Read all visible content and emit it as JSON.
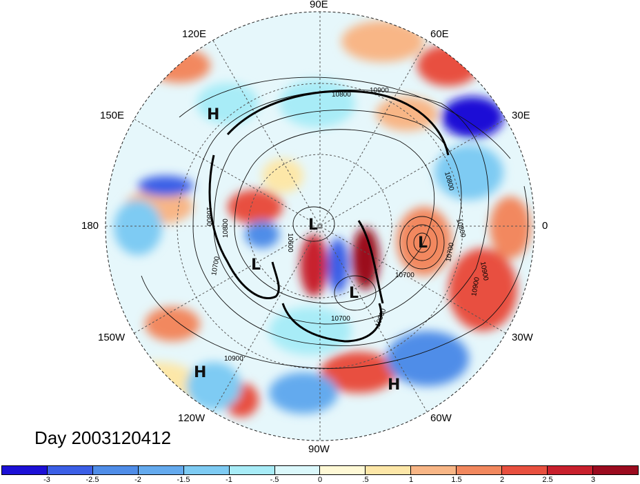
{
  "longitude_labels": {
    "lon_90e": "90E",
    "lon_60e": "60E",
    "lon_30e": "30E",
    "lon_0": "0",
    "lon_30w": "30W",
    "lon_60w": "60W",
    "lon_90w": "90W",
    "lon_120w": "120W",
    "lon_150w": "150W",
    "lon_180": "180",
    "lon_150e": "150E",
    "lon_120e": "120E"
  },
  "pressure_systems": [
    {
      "kind": "high",
      "symbol": "H",
      "region": "North Pacific / Siberia"
    },
    {
      "kind": "low",
      "symbol": "L",
      "region": "Pole"
    },
    {
      "kind": "low",
      "symbol": "L",
      "region": "Europe"
    },
    {
      "kind": "low",
      "symbol": "L",
      "region": "Alaska"
    },
    {
      "kind": "low",
      "symbol": "L",
      "region": "Hudson Bay"
    },
    {
      "kind": "high",
      "symbol": "H",
      "region": "Subtropical Pacific"
    },
    {
      "kind": "high",
      "symbol": "H",
      "region": "Subtropical Atlantic"
    }
  ],
  "contour_labels": [
    "10800",
    "10900",
    "10800",
    "10800",
    "10700",
    "10900",
    "10700",
    "10800",
    "10900",
    "10900",
    "10700",
    "10800",
    "10600",
    "10700",
    "10800"
  ],
  "day_label": "Day 2003120412",
  "colorbar": {
    "ticks": [
      "-3",
      "-2.5",
      "-2",
      "-1.5",
      "-1",
      "-.5",
      "0",
      ".5",
      "1",
      "1.5",
      "2",
      "2.5",
      "3"
    ],
    "colors": [
      "#1c10d6",
      "#3b5fe6",
      "#4f8de8",
      "#64aaee",
      "#7ecbf3",
      "#a8ecf7",
      "#dbf8fb",
      "#fff9d6",
      "#fde7a8",
      "#f8b686",
      "#f2885e",
      "#e8503f",
      "#c8202d",
      "#9b0b1f"
    ]
  }
}
